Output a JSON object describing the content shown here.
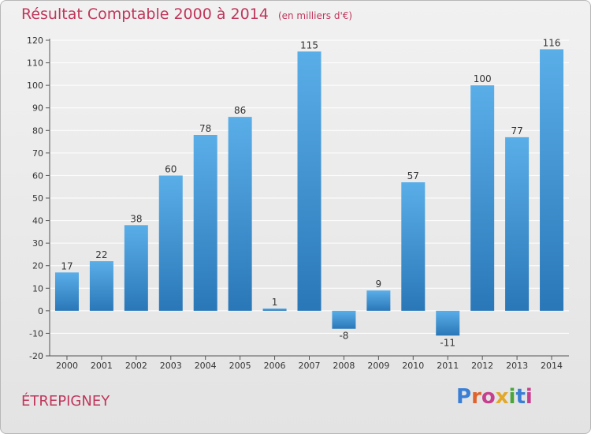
{
  "title": "Résultat Comptable 2000 à 2014",
  "subtitle": "(en milliers d'€)",
  "town": "ÉTREPIGNEY",
  "logo": {
    "text": "Proxiti",
    "letter_colors": [
      "#3a7fd5",
      "#e0632d",
      "#c63f8f",
      "#e2a82a",
      "#4aa63a",
      "#3a7fd5",
      "#c63f8f"
    ]
  },
  "colors": {
    "bar_top": "#5aaee8",
    "bar_bottom": "#2a77b8",
    "title": "#c0365b",
    "grid": "#ffffff",
    "axis_text": "#333333"
  },
  "chart_data": {
    "type": "bar",
    "title": "Résultat Comptable 2000 à 2014",
    "subtitle": "(en milliers d'€)",
    "categories": [
      "2000",
      "2001",
      "2002",
      "2003",
      "2004",
      "2005",
      "2006",
      "2007",
      "2008",
      "2009",
      "2010",
      "2011",
      "2012",
      "2013",
      "2014"
    ],
    "values": [
      17,
      22,
      38,
      60,
      78,
      86,
      1,
      115,
      -8,
      9,
      57,
      -11,
      100,
      77,
      116
    ],
    "ylim": [
      -20,
      120
    ],
    "yticks": [
      -20,
      -10,
      0,
      10,
      20,
      30,
      40,
      50,
      60,
      70,
      80,
      90,
      100,
      110,
      120
    ],
    "grid": true,
    "data_labels": true
  }
}
